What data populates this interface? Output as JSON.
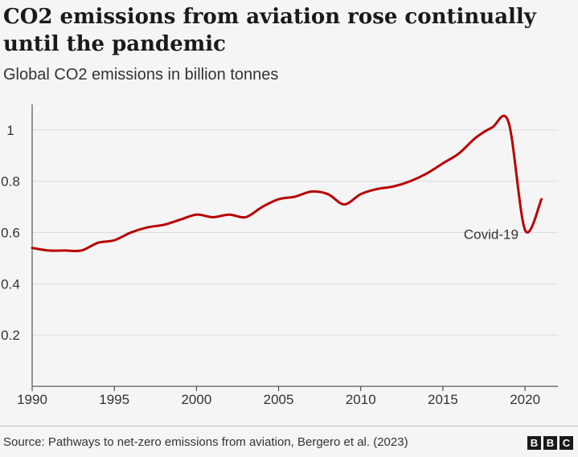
{
  "header": {
    "title": "CO2 emissions from aviation rose continually until the pandemic",
    "subtitle": "Global CO2 emissions in billion tonnes"
  },
  "footer": {
    "source": "Source: Pathways to net-zero emissions from aviation, Bergero et al. (2023)",
    "logo": [
      "B",
      "B",
      "C"
    ]
  },
  "chart_data": {
    "type": "line",
    "title": "CO2 emissions from aviation rose continually until the pandemic",
    "subtitle": "Global CO2 emissions in billion tonnes",
    "xlabel": "",
    "ylabel": "",
    "xlim": [
      1990,
      2022
    ],
    "ylim": [
      0,
      1.1
    ],
    "x_ticks": [
      1990,
      1995,
      2000,
      2005,
      2010,
      2015,
      2020
    ],
    "x_tick_labels": [
      "1990",
      "1995",
      "2000",
      "2005",
      "2010",
      "2015",
      "2020"
    ],
    "y_ticks": [
      0.2,
      0.4,
      0.6,
      0.8,
      1
    ],
    "y_tick_labels": [
      "0.2",
      "0.4",
      "0.6",
      "0.8",
      "1"
    ],
    "grid": "horizontal",
    "line_color": "#b80000",
    "series": [
      {
        "name": "Global aviation CO2 emissions",
        "x": [
          1990,
          1991,
          1992,
          1993,
          1994,
          1995,
          1996,
          1997,
          1998,
          1999,
          2000,
          2001,
          2002,
          2003,
          2004,
          2005,
          2006,
          2007,
          2008,
          2009,
          2010,
          2011,
          2012,
          2013,
          2014,
          2015,
          2016,
          2017,
          2018,
          2019,
          2020,
          2021
        ],
        "values": [
          0.54,
          0.53,
          0.53,
          0.53,
          0.56,
          0.57,
          0.6,
          0.62,
          0.63,
          0.65,
          0.67,
          0.66,
          0.67,
          0.66,
          0.7,
          0.73,
          0.74,
          0.76,
          0.75,
          0.71,
          0.75,
          0.77,
          0.78,
          0.8,
          0.83,
          0.87,
          0.91,
          0.97,
          1.01,
          1.03,
          0.61,
          0.73
        ]
      }
    ],
    "annotations": [
      {
        "text": "Covid-19",
        "x": 2019.6,
        "y": 0.6
      }
    ]
  }
}
